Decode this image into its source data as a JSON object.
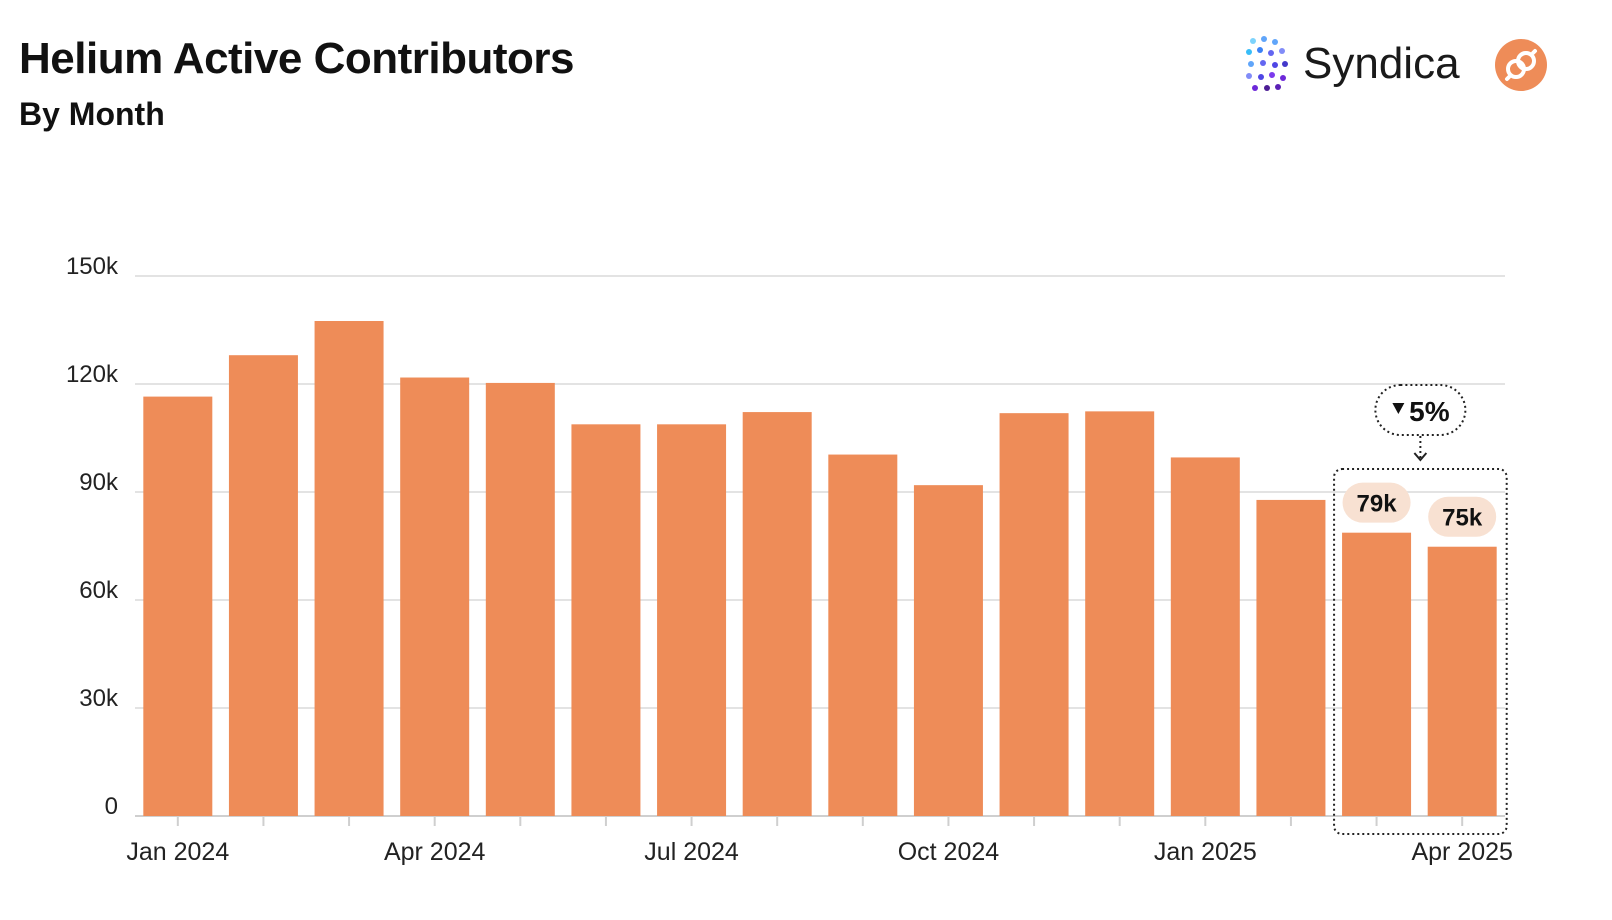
{
  "header": {
    "title": "Helium Active Contributors",
    "subtitle": "By Month",
    "brand_name": "Syndica"
  },
  "colors": {
    "bar": "#EE8C58",
    "label_bg": "#F8E1D2",
    "grid": "#E3E3E3"
  },
  "chart_data": {
    "type": "bar",
    "title": "Helium Active Contributors",
    "subtitle": "By Month",
    "categories": [
      "Jan 2024",
      "Feb 2024",
      "Mar 2024",
      "Apr 2024",
      "May 2024",
      "Jun 2024",
      "Jul 2024",
      "Aug 2024",
      "Sep 2024",
      "Oct 2024",
      "Nov 2024",
      "Dec 2024",
      "Jan 2025",
      "Feb 2025",
      "Mar 2025",
      "Apr 2025"
    ],
    "values": [
      116500,
      128000,
      137500,
      121800,
      120300,
      108800,
      108800,
      112200,
      100400,
      91900,
      111900,
      112400,
      99600,
      87800,
      78700,
      74800
    ],
    "x_tick_labels": [
      {
        "index": 0,
        "label": "Jan 2024"
      },
      {
        "index": 3,
        "label": "Apr 2024"
      },
      {
        "index": 6,
        "label": "Jul 2024"
      },
      {
        "index": 9,
        "label": "Oct 2024"
      },
      {
        "index": 12,
        "label": "Jan 2025"
      },
      {
        "index": 15,
        "label": "Apr 2025"
      }
    ],
    "y_ticks": [
      {
        "value": 0,
        "label": "0"
      },
      {
        "value": 30000,
        "label": "30k"
      },
      {
        "value": 60000,
        "label": "60k"
      },
      {
        "value": 90000,
        "label": "90k"
      },
      {
        "value": 120000,
        "label": "120k"
      },
      {
        "value": 150000,
        "label": "150k"
      }
    ],
    "ylim": [
      0,
      150000
    ],
    "grid": true,
    "xlabel": "",
    "ylabel": "",
    "data_labels": [
      {
        "index": 14,
        "label": "79k"
      },
      {
        "index": 15,
        "label": "75k"
      }
    ],
    "annotation": {
      "text": "5%",
      "direction": "down",
      "highlight_range": [
        14,
        15
      ]
    }
  }
}
